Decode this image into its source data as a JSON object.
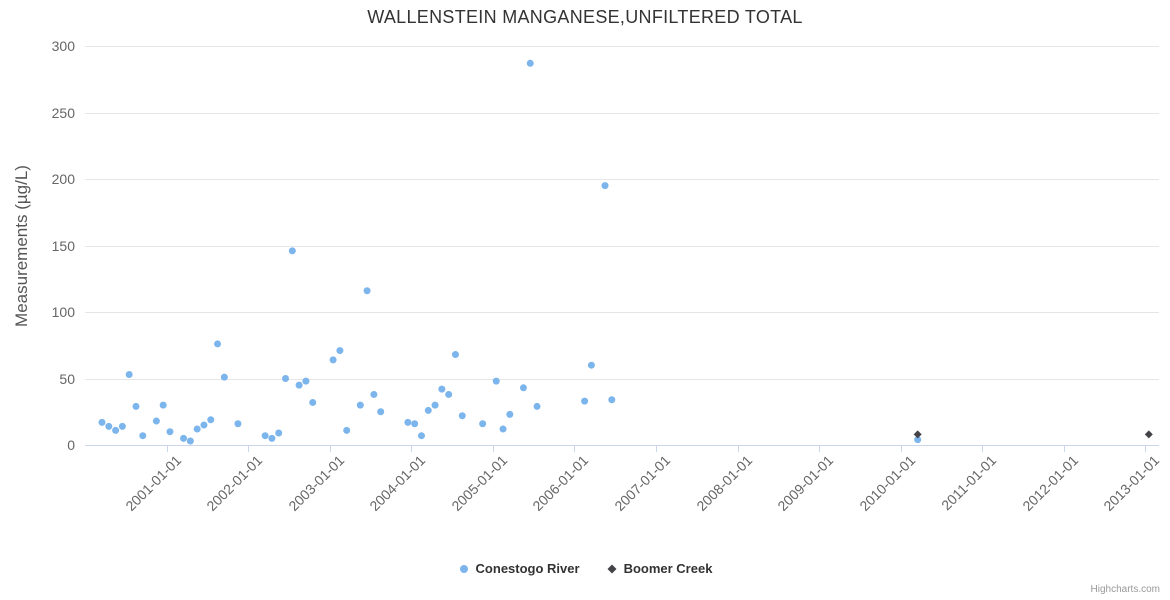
{
  "credits": "Highcharts.com",
  "chart_data": {
    "type": "scatter",
    "title": "WALLENSTEIN MANGANESE,UNFILTERED TOTAL",
    "xlabel": "",
    "ylabel": "Measurements (µg/L)",
    "ylim": [
      0,
      300
    ],
    "yticks": [
      0,
      50,
      100,
      150,
      200,
      250,
      300
    ],
    "xticks": [
      "2001-01-01",
      "2002-01-01",
      "2003-01-01",
      "2004-01-01",
      "2005-01-01",
      "2006-01-01",
      "2007-01-01",
      "2008-01-01",
      "2009-01-01",
      "2010-01-01",
      "2011-01-01",
      "2012-01-01",
      "2013-01-01"
    ],
    "xrange": [
      "2000-01",
      "2013-03"
    ],
    "grid": "horizontal",
    "legend_position": "bottom-center",
    "colors": {
      "grid": "#e6e6e6",
      "axis_line": "#ccd6eb",
      "labels": "#666666",
      "title": "#333333"
    },
    "series": [
      {
        "name": "Conestogo River",
        "color": "#7cb5ec",
        "marker": "circle",
        "points": [
          [
            "2000-03",
            17
          ],
          [
            "2000-04",
            14
          ],
          [
            "2000-05",
            11
          ],
          [
            "2000-06",
            14
          ],
          [
            "2000-07",
            53
          ],
          [
            "2000-08",
            29
          ],
          [
            "2000-09",
            7
          ],
          [
            "2000-11",
            18
          ],
          [
            "2000-12",
            30
          ],
          [
            "2001-01",
            10
          ],
          [
            "2001-03",
            5
          ],
          [
            "2001-04",
            3
          ],
          [
            "2001-05",
            12
          ],
          [
            "2001-06",
            15
          ],
          [
            "2001-07",
            19
          ],
          [
            "2001-08",
            76
          ],
          [
            "2001-09",
            51
          ],
          [
            "2001-11",
            16
          ],
          [
            "2002-03",
            7
          ],
          [
            "2002-04",
            5
          ],
          [
            "2002-05",
            9
          ],
          [
            "2002-06",
            50
          ],
          [
            "2002-07",
            146
          ],
          [
            "2002-08",
            45
          ],
          [
            "2002-09",
            48
          ],
          [
            "2002-10",
            32
          ],
          [
            "2003-01",
            64
          ],
          [
            "2003-02",
            71
          ],
          [
            "2003-03",
            11
          ],
          [
            "2003-05",
            30
          ],
          [
            "2003-06",
            116
          ],
          [
            "2003-07",
            38
          ],
          [
            "2003-08",
            25
          ],
          [
            "2003-12",
            17
          ],
          [
            "2004-01",
            16
          ],
          [
            "2004-02",
            7
          ],
          [
            "2004-03",
            26
          ],
          [
            "2004-04",
            30
          ],
          [
            "2004-05",
            42
          ],
          [
            "2004-06",
            38
          ],
          [
            "2004-07",
            68
          ],
          [
            "2004-08",
            22
          ],
          [
            "2004-11",
            16
          ],
          [
            "2005-01",
            48
          ],
          [
            "2005-02",
            12
          ],
          [
            "2005-03",
            23
          ],
          [
            "2005-05",
            43
          ],
          [
            "2005-06",
            287
          ],
          [
            "2005-07",
            29
          ],
          [
            "2006-02",
            33
          ],
          [
            "2006-03",
            60
          ],
          [
            "2006-05",
            195
          ],
          [
            "2006-06",
            34
          ],
          [
            "2010-03",
            4
          ]
        ]
      },
      {
        "name": "Boomer Creek",
        "color": "#434348",
        "marker": "diamond",
        "points": [
          [
            "2010-03",
            8
          ],
          [
            "2013-01",
            8
          ]
        ]
      }
    ]
  }
}
